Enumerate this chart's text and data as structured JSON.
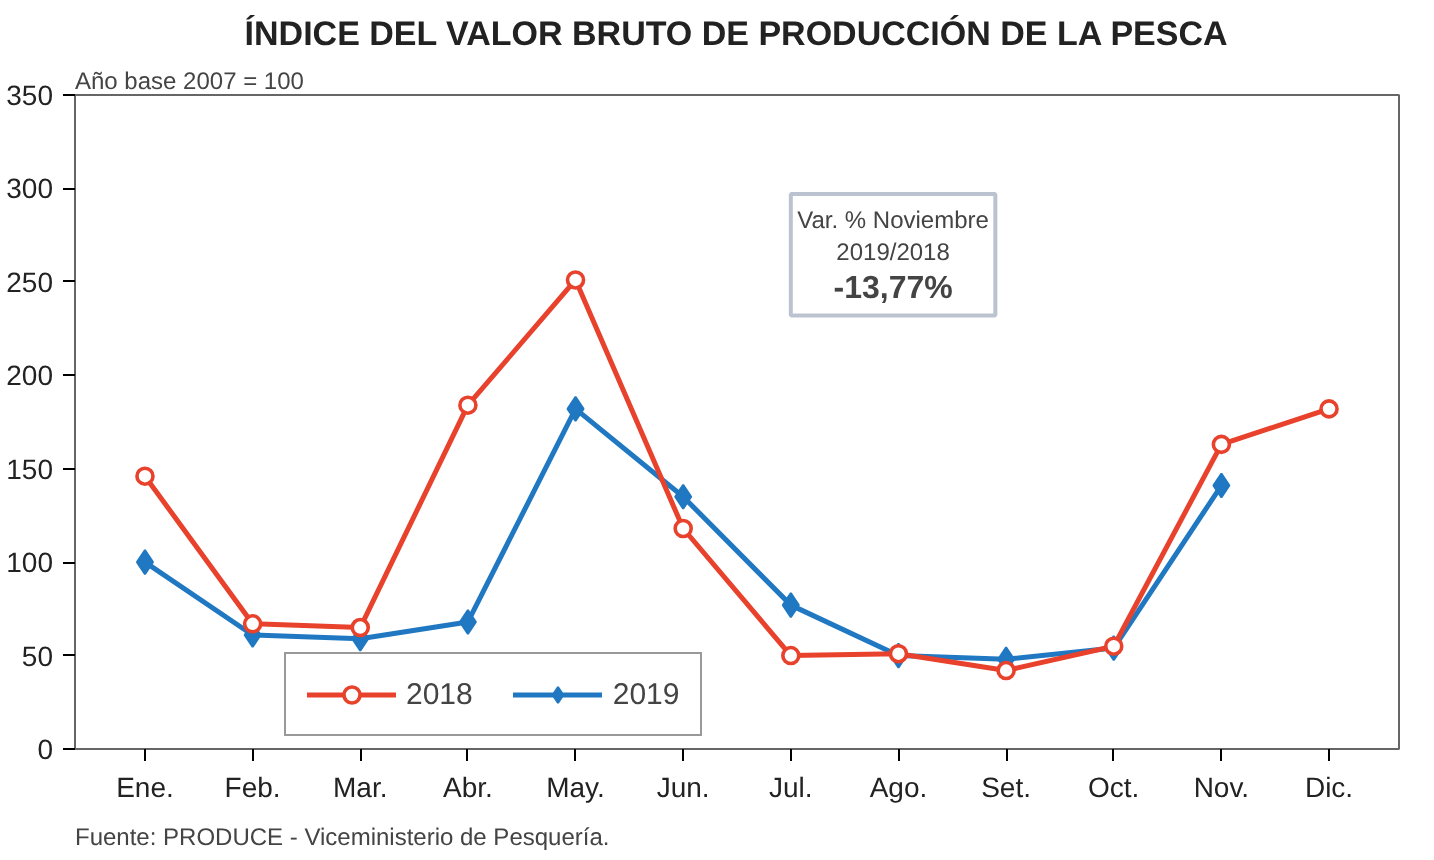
{
  "chart_data": {
    "type": "line",
    "title": "ÍNDICE DEL VALOR BRUTO DE PRODUCCIÓN DE LA PESCA",
    "categories": [
      "Ene.",
      "Feb.",
      "Mar.",
      "Abr.",
      "May.",
      "Jun.",
      "Jul.",
      "Ago.",
      "Set.",
      "Oct.",
      "Nov.",
      "Dic."
    ],
    "series": [
      {
        "name": "2018",
        "color": "#e8412c",
        "marker": "circle",
        "values": [
          146,
          67,
          65,
          184,
          251,
          118,
          50,
          51,
          42,
          55,
          163,
          182
        ]
      },
      {
        "name": "2019",
        "color": "#1f78c1",
        "marker": "diamond",
        "values": [
          100,
          61,
          59,
          68,
          182,
          135,
          77,
          50,
          48,
          54,
          141,
          null
        ]
      }
    ],
    "ylim": [
      0,
      350
    ],
    "yticks": [
      0,
      50,
      100,
      150,
      200,
      250,
      300,
      350
    ],
    "grid": false,
    "legend": "bottom left",
    "line_style": "solid",
    "annotations": [
      "Año base  2007  =  100",
      "Var. % Noviembre",
      "2019/2018",
      "-13,77%",
      "Fuente:  PRODUCE - Viceministerio de Pesquería."
    ]
  }
}
